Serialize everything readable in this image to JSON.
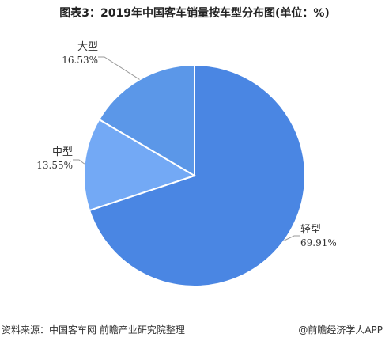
{
  "title": "图表3：2019年中国客车销量按车型分布图(单位：%)",
  "chart_data": {
    "type": "pie",
    "unit": "%",
    "slices": [
      {
        "label": "轻型",
        "value": 69.91,
        "display": "69.91%",
        "color": "#4a86e3"
      },
      {
        "label": "中型",
        "value": 13.55,
        "display": "13.55%",
        "color": "#73a9f5"
      },
      {
        "label": "大型",
        "value": 16.53,
        "display": "16.53%",
        "color": "#5b97e8"
      }
    ]
  },
  "footer": {
    "source": "资料来源：中国客车网  前瞻产业研究院整理",
    "brand": "@前瞻经济学人APP"
  }
}
